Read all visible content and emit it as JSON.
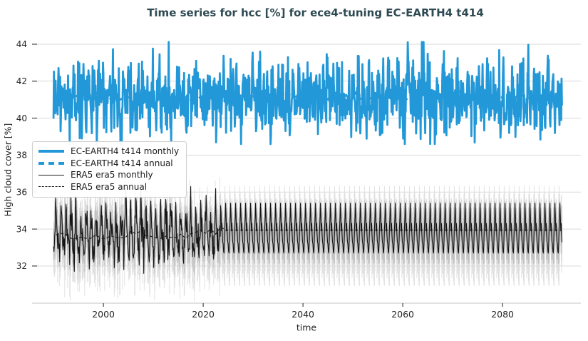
{
  "figure": {
    "title": "Time series for hcc [%] for ece4-tuning EC-EARTH4 t414",
    "title_color": "#2e4a52",
    "background_color": "#ffffff"
  },
  "chart_data": {
    "type": "line",
    "title": "Time series for hcc [%] for ece4-tuning EC-EARTH4 t414",
    "xlabel": "time",
    "ylabel": "High cloud cover [%]",
    "xlim": [
      1985.7,
      2095.7
    ],
    "ylim": [
      29.99,
      44.54
    ],
    "xticks": [
      2000,
      2020,
      2040,
      2060,
      2080
    ],
    "yticks": [
      32,
      34,
      36,
      38,
      40,
      42,
      44
    ],
    "x_data_start": 1990.0,
    "x_data_end": 2091.9,
    "grid": "horizontal-only",
    "grid_color": "#d9d9d9",
    "axis_line_color": "#cfcfcf",
    "tick_mark_color": "#444444",
    "tick_label_color": "#262626",
    "legend_position": "upper-left-inside",
    "seed": 414042,
    "series": [
      {
        "name": "EC-EARTH4 t414 monthly",
        "color": "#2298d8",
        "line": "solid",
        "width": 2.8,
        "freq": "monthly",
        "approx_mean": 41.1,
        "approx_range": [
          38.6,
          44.15
        ],
        "gen": {
          "mean": 41.1,
          "seasonal_amp": 0.55,
          "noise_sd": 1.0,
          "clip": [
            38.6,
            44.12
          ]
        }
      },
      {
        "name": "EC-EARTH4 t414 annual",
        "color": "#2298d8",
        "line": "dashed",
        "width": 2.8,
        "freq": "annual",
        "approx_mean": 41.15,
        "approx_range": [
          40.8,
          41.5
        ],
        "gen": {
          "mean": 41.15,
          "noise_sd": 0.15,
          "clip": [
            40.8,
            41.5
          ]
        }
      },
      {
        "name": "ERA5 era5 monthly",
        "color": "#141414",
        "line": "solid",
        "width": 1.1,
        "freq": "monthly",
        "approx_mean": 33.9,
        "approx_range": [
          31.7,
          36.3
        ],
        "gen": {
          "climatology": [
            33.2,
            32.8,
            32.7,
            33.2,
            34.0,
            34.6,
            35.4,
            34.7,
            33.9,
            34.3,
            33.7,
            33.3
          ],
          "noise_sd": 0.5,
          "wander_step": 0.035,
          "wander_max": 0.4,
          "clip": [
            31.6,
            36.3
          ],
          "repeat_after": 2023.6
        }
      },
      {
        "name": "ERA5 era5 annual",
        "color": "#141414",
        "line": "dashed",
        "width": 1.1,
        "freq": "annual",
        "approx_mean": 33.9,
        "approx_range": [
          33.5,
          34.3
        ],
        "gen": {
          "mean": 33.9,
          "noise_sd": 0.18,
          "clip": [
            33.5,
            34.3
          ],
          "repeat_after": 2024,
          "repeat_value": 33.95
        }
      }
    ],
    "era5_uncertainty": {
      "spike_halfwidth_by_month": [
        1.1,
        1.3,
        1.7,
        2.1,
        2.3,
        1.8,
        1.3,
        1.0,
        1.2,
        1.5,
        1.8,
        1.4
      ],
      "spike_color_light": "#dcdcdc",
      "spike_color_mid": "#bdbdbd",
      "band_half_width": 0.5,
      "band_color": "#8f8f8f",
      "band_opacity": 0.35
    }
  },
  "legend": {
    "items": [
      {
        "label": "EC-EARTH4 t414 monthly"
      },
      {
        "label": "EC-EARTH4 t414 annual"
      },
      {
        "label": "ERA5 era5 monthly"
      },
      {
        "label": "ERA5 era5 annual"
      }
    ]
  }
}
